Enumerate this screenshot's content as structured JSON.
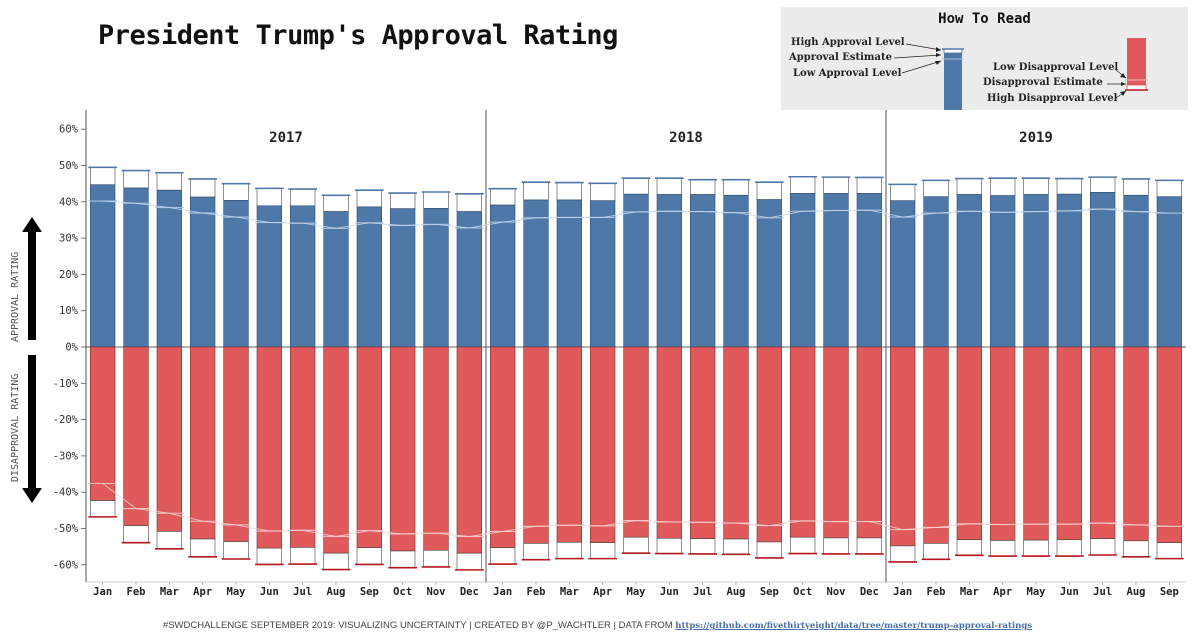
{
  "title": "President Trump's Approval Rating",
  "how_to_read": {
    "title": "How To Read",
    "high_approval": "High Approval Level",
    "approval_estimate": "Approval Estimate",
    "low_approval": "Low Approval Level",
    "low_disapproval": "Low Disapproval Level",
    "disapproval_estimate": "Disapproval Estimate",
    "high_disapproval": "High Disapproval Level",
    "approval_color": "#4e78a8",
    "disapproval_color": "#e05a5c"
  },
  "axis_labels": {
    "approval": "APPROVAL RATING",
    "disapproval": "DISAPPROVAL RATING"
  },
  "footer": {
    "text": "#SWDCHALLENGE SEPTEMBER 2019: VISUALIZING UNCERTAINTY | CREATED BY @P_WACHTLER | DATA FROM ",
    "link": "https://github.com/fivethirtyeight/data/tree/master/trump-approval-ratings"
  },
  "chart_data": {
    "type": "bar",
    "title": "President Trump's Approval Rating",
    "ylim": [
      -65,
      60
    ],
    "yticks": [
      60,
      50,
      40,
      30,
      20,
      10,
      0,
      -10,
      -20,
      -30,
      -40,
      -50,
      -60
    ],
    "ytick_labels": [
      "60%",
      "50%",
      "40%",
      "30%",
      "20%",
      "10%",
      "0%",
      "-10%",
      "-20%",
      "-30%",
      "-40%",
      "-50%",
      "-60%"
    ],
    "years": [
      {
        "label": "2017",
        "months": 12
      },
      {
        "label": "2018",
        "months": 12
      },
      {
        "label": "2019",
        "months": 9
      }
    ],
    "categories": [
      "Jan",
      "Feb",
      "Mar",
      "Apr",
      "May",
      "Jun",
      "Jul",
      "Aug",
      "Sep",
      "Oct",
      "Nov",
      "Dec",
      "Jan",
      "Feb",
      "Mar",
      "Apr",
      "May",
      "Jun",
      "Jul",
      "Aug",
      "Sep",
      "Oct",
      "Nov",
      "Dec",
      "Jan",
      "Feb",
      "Mar",
      "Apr",
      "May",
      "Jun",
      "Jul",
      "Aug",
      "Sep"
    ],
    "series": [
      {
        "name": "Approval Estimate",
        "values": [
          44.7,
          43.8,
          43.2,
          41.3,
          40.4,
          38.9,
          38.9,
          37.3,
          38.6,
          38.1,
          38.2,
          37.3,
          39.1,
          40.5,
          40.5,
          40.3,
          42.1,
          42.0,
          42.0,
          41.8,
          40.6,
          42.3,
          42.3,
          42.3,
          40.3,
          41.4,
          42.0,
          41.7,
          42.0,
          42.1,
          42.6,
          41.8,
          41.4
        ]
      },
      {
        "name": "High Approval Level",
        "values": [
          49.5,
          48.6,
          48.0,
          46.3,
          45.0,
          43.7,
          43.5,
          41.8,
          43.2,
          42.4,
          42.7,
          42.2,
          43.6,
          45.4,
          45.3,
          45.1,
          46.5,
          46.5,
          46.1,
          46.1,
          45.4,
          46.9,
          46.8,
          46.7,
          44.8,
          45.9,
          46.4,
          46.5,
          46.5,
          46.4,
          46.8,
          46.3,
          45.9
        ]
      },
      {
        "name": "Low Approval Level",
        "values": [
          40.2,
          39.6,
          38.4,
          36.9,
          35.8,
          34.3,
          34.1,
          32.7,
          34.2,
          33.5,
          33.8,
          32.8,
          34.4,
          35.6,
          35.7,
          35.7,
          37.2,
          37.4,
          37.3,
          37.0,
          35.6,
          37.4,
          37.6,
          37.7,
          35.8,
          36.9,
          37.4,
          37.1,
          37.3,
          37.5,
          38.0,
          37.3,
          36.9
        ]
      },
      {
        "name": "Disapproval Estimate",
        "values": [
          -42.3,
          -49.2,
          -50.8,
          -52.9,
          -53.6,
          -55.4,
          -55.2,
          -56.8,
          -55.3,
          -56.2,
          -56.0,
          -56.8,
          -55.3,
          -54.1,
          -53.8,
          -53.9,
          -52.4,
          -52.7,
          -52.8,
          -52.9,
          -53.7,
          -52.4,
          -52.6,
          -52.6,
          -54.8,
          -54.1,
          -53.1,
          -53.3,
          -53.2,
          -53.1,
          -52.8,
          -53.4,
          -53.9
        ]
      },
      {
        "name": "Low Disapproval Level",
        "values": [
          -37.6,
          -44.5,
          -45.8,
          -48.0,
          -49.0,
          -50.7,
          -50.5,
          -52.2,
          -50.6,
          -51.5,
          -51.3,
          -52.2,
          -50.8,
          -49.4,
          -49.1,
          -49.3,
          -47.8,
          -48.2,
          -48.3,
          -48.5,
          -49.2,
          -47.9,
          -48.1,
          -48.1,
          -50.3,
          -49.7,
          -48.7,
          -48.9,
          -48.8,
          -48.8,
          -48.5,
          -49.0,
          -49.4
        ]
      },
      {
        "name": "High Disapproval Level",
        "values": [
          -46.8,
          -53.9,
          -55.6,
          -57.8,
          -58.4,
          -59.9,
          -59.8,
          -61.3,
          -59.9,
          -60.8,
          -60.6,
          -61.4,
          -59.8,
          -58.6,
          -58.3,
          -58.3,
          -56.8,
          -56.9,
          -57.0,
          -57.1,
          -58.1,
          -56.9,
          -57.0,
          -57.0,
          -59.2,
          -58.5,
          -57.4,
          -57.6,
          -57.6,
          -57.6,
          -57.3,
          -57.8,
          -58.3
        ]
      }
    ],
    "colors": {
      "approval": "#4e78a8",
      "disapproval": "#e05a5c",
      "approval_line": "#4e78a8",
      "disapproval_line": "#b5161b"
    }
  }
}
